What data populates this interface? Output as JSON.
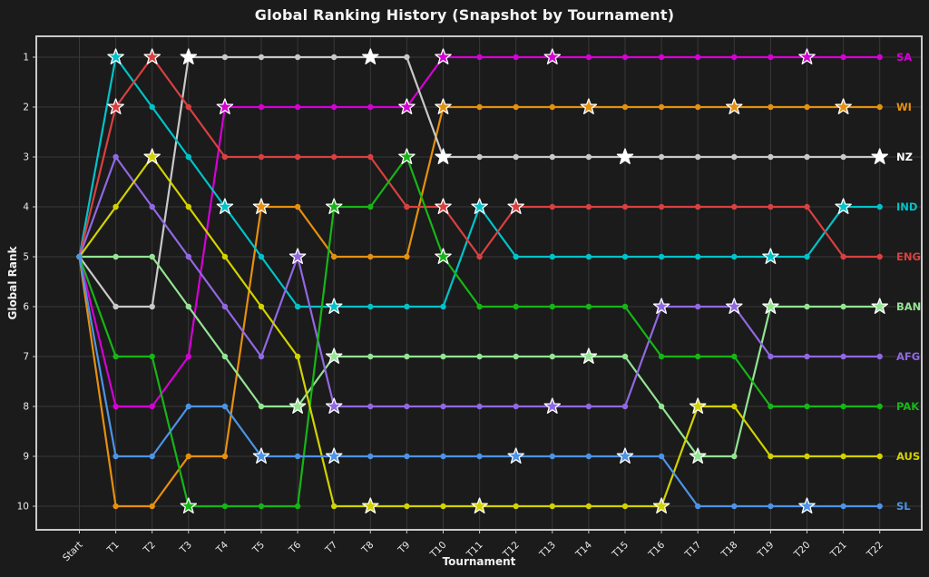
{
  "title": "Global Ranking History (Snapshot by Tournament)",
  "chart_data": {
    "type": "line",
    "subtype": "bump-chart",
    "xlabel": "Tournament",
    "ylabel": "Global Rank",
    "x_categories": [
      "Start",
      "T1",
      "T2",
      "T3",
      "T4",
      "T5",
      "T6",
      "T7",
      "T8",
      "T9",
      "T10",
      "T11",
      "T12",
      "T13",
      "T14",
      "T15",
      "T16",
      "T17",
      "T18",
      "T19",
      "T20",
      "T21",
      "T22"
    ],
    "y_ticks": [
      1,
      2,
      3,
      4,
      5,
      6,
      7,
      8,
      9,
      10
    ],
    "y_inverted": true,
    "grid": true,
    "legend_position": "right-edge-labels",
    "marker_note": "dots at every tournament; star markers at highlighted tournaments",
    "colors": {
      "background": "#1b1b1b",
      "grid": "#383838",
      "spine": "#c9c9c9",
      "text": "#ebebeb"
    },
    "series": [
      {
        "name": "SA",
        "color": "#d500d5",
        "values": [
          5,
          8,
          8,
          7,
          2,
          2,
          2,
          2,
          2,
          2,
          1,
          1,
          1,
          1,
          1,
          1,
          1,
          1,
          1,
          1,
          1,
          1,
          1
        ],
        "stars": [
          4,
          9,
          10,
          13,
          20
        ]
      },
      {
        "name": "WI",
        "color": "#e6900e",
        "values": [
          5,
          10,
          10,
          9,
          9,
          4,
          4,
          5,
          5,
          5,
          2,
          2,
          2,
          2,
          2,
          2,
          2,
          2,
          2,
          2,
          2,
          2,
          2
        ],
        "stars": [
          5,
          10,
          14,
          18,
          21
        ]
      },
      {
        "name": "NZ",
        "color": "#c9c9c9",
        "star_color": "#ffffff",
        "label_color": "#ffffff",
        "values": [
          5,
          6,
          6,
          1,
          1,
          1,
          1,
          1,
          1,
          1,
          3,
          3,
          3,
          3,
          3,
          3,
          3,
          3,
          3,
          3,
          3,
          3,
          3
        ],
        "stars": [
          3,
          8,
          10,
          15,
          22
        ]
      },
      {
        "name": "IND",
        "color": "#00c3c9",
        "values": [
          5,
          1,
          2,
          3,
          4,
          5,
          6,
          6,
          6,
          6,
          6,
          4,
          5,
          5,
          5,
          5,
          5,
          5,
          5,
          5,
          5,
          4,
          4
        ],
        "stars": [
          1,
          4,
          7,
          11,
          19,
          21
        ]
      },
      {
        "name": "ENG",
        "color": "#d94040",
        "values": [
          5,
          2,
          1,
          2,
          3,
          3,
          3,
          3,
          3,
          4,
          4,
          5,
          4,
          4,
          4,
          4,
          4,
          4,
          4,
          4,
          4,
          5,
          5
        ],
        "stars": [
          1,
          2,
          10,
          12
        ]
      },
      {
        "name": "BAN",
        "color": "#93e493",
        "values": [
          5,
          5,
          5,
          6,
          7,
          8,
          8,
          7,
          7,
          7,
          7,
          7,
          7,
          7,
          7,
          7,
          8,
          9,
          9,
          6,
          6,
          6,
          6
        ],
        "stars": [
          6,
          7,
          14,
          17,
          19,
          22
        ]
      },
      {
        "name": "AFG",
        "color": "#9168e2",
        "values": [
          5,
          3,
          4,
          5,
          6,
          7,
          5,
          8,
          8,
          8,
          8,
          8,
          8,
          8,
          8,
          8,
          6,
          6,
          6,
          7,
          7,
          7,
          7
        ],
        "stars": [
          6,
          7,
          13,
          16,
          18
        ]
      },
      {
        "name": "PAK",
        "color": "#16b616",
        "values": [
          5,
          7,
          7,
          10,
          10,
          10,
          10,
          4,
          4,
          3,
          5,
          6,
          6,
          6,
          6,
          6,
          7,
          7,
          7,
          8,
          8,
          8,
          8
        ],
        "stars": [
          3,
          7,
          9,
          10
        ]
      },
      {
        "name": "AUS",
        "color": "#d2d200",
        "values": [
          5,
          4,
          3,
          4,
          5,
          6,
          7,
          10,
          10,
          10,
          10,
          10,
          10,
          10,
          10,
          10,
          10,
          8,
          8,
          9,
          9,
          9,
          9
        ],
        "stars": [
          2,
          8,
          11,
          16,
          17
        ]
      },
      {
        "name": "SL",
        "color": "#4d93e6",
        "values": [
          5,
          9,
          9,
          8,
          8,
          9,
          9,
          9,
          9,
          9,
          9,
          9,
          9,
          9,
          9,
          9,
          9,
          10,
          10,
          10,
          10,
          10,
          10
        ],
        "stars": [
          5,
          7,
          12,
          15,
          20
        ]
      }
    ]
  }
}
